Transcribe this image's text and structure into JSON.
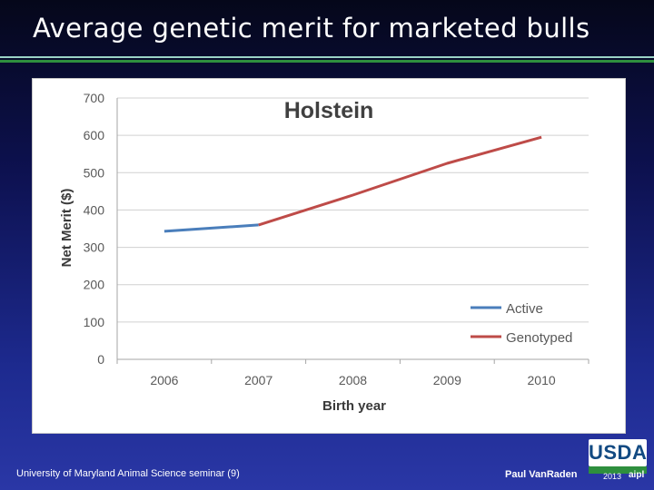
{
  "slide": {
    "title": "Average genetic merit for marketed bulls",
    "footer_left": "University of Maryland Animal Science seminar (9)",
    "footer_right": "Paul VanRaden",
    "logo_text": "USDA",
    "logo_year": "2013",
    "logo_mark": "aipl"
  },
  "colors": {
    "rule_top": "#9bd3c6",
    "rule_bottom": "#2e8f3e"
  },
  "chart_data": {
    "type": "line",
    "title": "Holstein",
    "xlabel": "Birth year",
    "ylabel": "Net Merit ($)",
    "categories": [
      "2006",
      "2007",
      "2008",
      "2009",
      "2010"
    ],
    "ylim": [
      0,
      700
    ],
    "yticks": [
      0,
      100,
      200,
      300,
      400,
      500,
      600,
      700
    ],
    "grid": true,
    "legend_position": "bottom-right",
    "series": [
      {
        "name": "Active",
        "color": "#4a7ebb",
        "values": [
          343,
          360,
          null,
          null,
          null
        ]
      },
      {
        "name": "Genotyped",
        "color": "#be4b48",
        "values": [
          null,
          360,
          440,
          525,
          595
        ]
      }
    ]
  }
}
